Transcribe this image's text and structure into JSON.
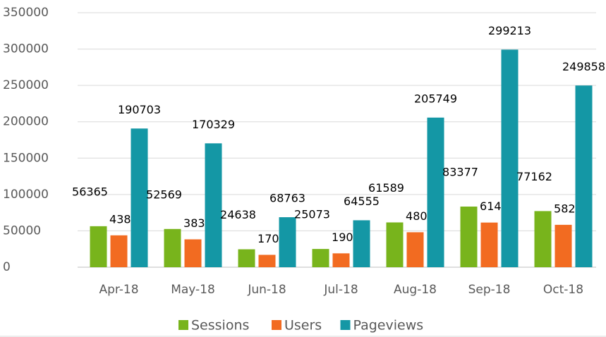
{
  "chart_data": {
    "type": "bar",
    "categories": [
      "Apr-18",
      "May-18",
      "Jun-18",
      "Jul-18",
      "Aug-18",
      "Sep-18",
      "Oct-18"
    ],
    "series": [
      {
        "name": "Sessions",
        "color": "#78b41c",
        "values": [
          56365,
          52569,
          24638,
          25073,
          61589,
          83377,
          77162
        ]
      },
      {
        "name": "Users",
        "color": "#f26b21",
        "values": [
          43837,
          38317,
          17000,
          19057,
          48094,
          61402,
          58286
        ]
      },
      {
        "name": "Pageviews",
        "color": "#1497a5",
        "values": [
          190703,
          170329,
          68763,
          64555,
          205749,
          299213,
          249858
        ]
      }
    ],
    "ylim": [
      0,
      350000
    ],
    "yticks": [
      0,
      50000,
      100000,
      150000,
      200000,
      250000,
      300000,
      350000
    ],
    "grid": true,
    "legend": "bottom"
  }
}
